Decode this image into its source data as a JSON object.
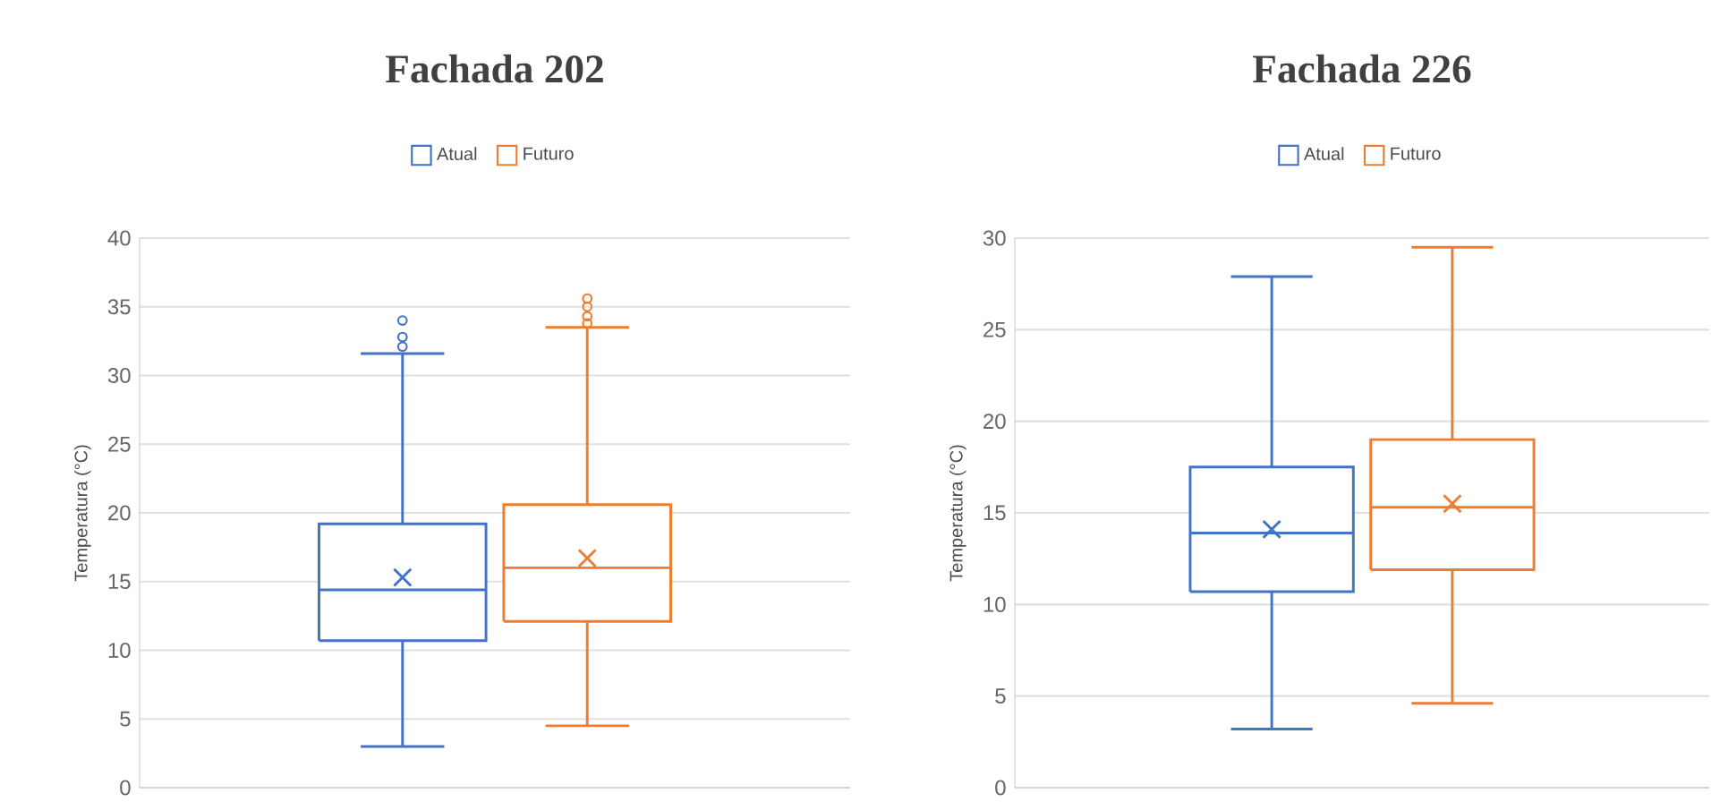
{
  "chart_data": [
    {
      "type": "box",
      "title": "Fachada 202",
      "ylabel": "Temperatura (°C)",
      "categories": [
        null
      ],
      "ylim": [
        0,
        40
      ],
      "yticks": [
        0,
        5,
        10,
        15,
        20,
        25,
        30,
        35,
        40
      ],
      "grid": "y",
      "legend": "top",
      "series": [
        {
          "name": "Atual",
          "color": "#4472c4",
          "boxes": [
            {
              "low": 3.0,
              "q1": 10.7,
              "median": 14.4,
              "q3": 19.2,
              "high": 31.6,
              "mean": 15.3,
              "outliers": [
                32.1,
                32.8,
                34.0
              ]
            }
          ]
        },
        {
          "name": "Futuro",
          "color": "#ed7d31",
          "boxes": [
            {
              "low": 4.5,
              "q1": 12.1,
              "median": 16.0,
              "q3": 20.6,
              "high": 33.5,
              "mean": 16.7,
              "outliers": [
                33.8,
                34.3,
                35.0,
                35.6
              ]
            }
          ]
        }
      ]
    },
    {
      "type": "box",
      "title": "Fachada 226",
      "ylabel": "Temperatura (°C)",
      "categories": [
        null
      ],
      "ylim": [
        0,
        30
      ],
      "yticks": [
        0,
        5,
        10,
        15,
        20,
        25,
        30
      ],
      "grid": "y",
      "legend": "top",
      "series": [
        {
          "name": "Atual",
          "color": "#4472c4",
          "boxes": [
            {
              "low": 3.2,
              "q1": 10.7,
              "median": 13.9,
              "q3": 17.5,
              "high": 27.9,
              "mean": 14.1
            }
          ]
        },
        {
          "name": "Futuro",
          "color": "#ed7d31",
          "boxes": [
            {
              "low": 4.6,
              "q1": 11.9,
              "median": 15.3,
              "q3": 19.0,
              "high": 29.5,
              "mean": 15.5
            }
          ]
        }
      ]
    }
  ]
}
